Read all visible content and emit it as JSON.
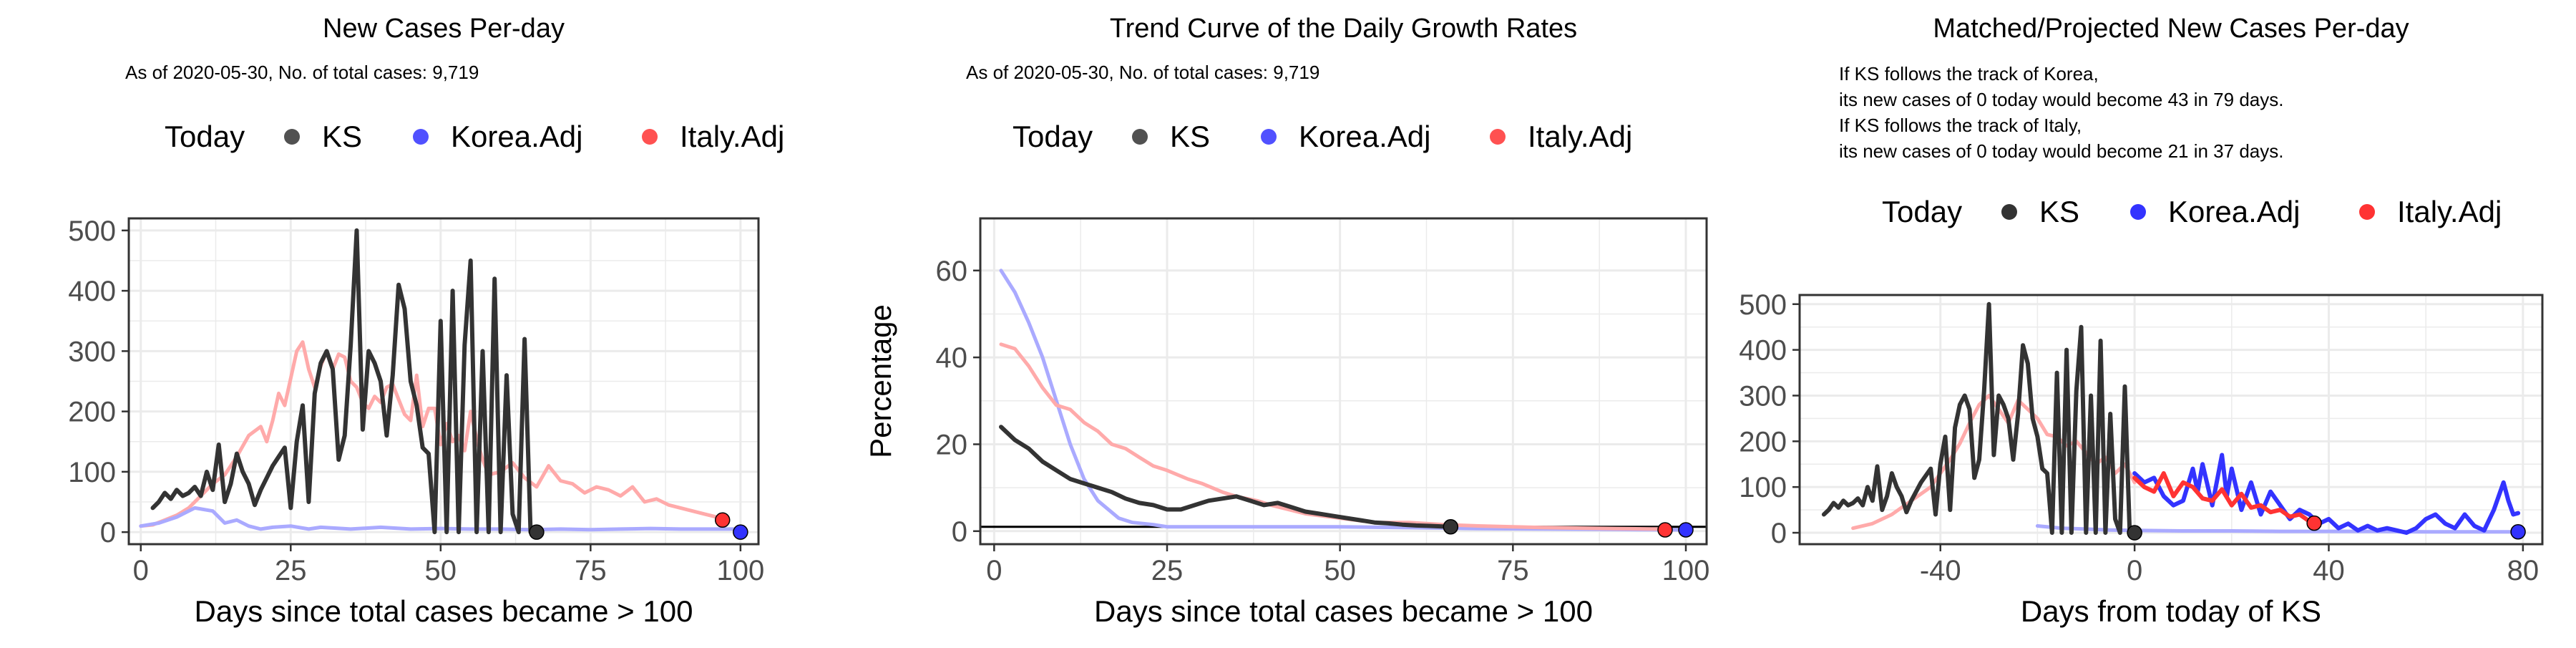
{
  "colors": {
    "ks": "#333333",
    "korea": "#3333ff",
    "italy": "#ff3333",
    "korea_faint": "#aaaaff",
    "italy_faint": "#ffaaaa",
    "grid": "#ebebeb",
    "axis_text": "#4d4d4d"
  },
  "legend_items": [
    "Today",
    "KS",
    "Korea.Adj",
    "Italy.Adj"
  ],
  "chart_data": [
    {
      "type": "line",
      "title": "New Cases Per-day",
      "subtitle": "As of 2020-05-30, No. of total cases: 9,719",
      "xlabel": "Days since total cases became > 100",
      "ylabel": "",
      "xlim": [
        -2,
        103
      ],
      "ylim": [
        -20,
        520
      ],
      "xticks": [
        0,
        25,
        50,
        75,
        100
      ],
      "yticks": [
        0,
        100,
        200,
        300,
        400,
        500
      ],
      "legend_position": "top",
      "series": [
        {
          "name": "Italy.Adj",
          "faint": true,
          "x": [
            0,
            2,
            4,
            6,
            8,
            10,
            12,
            14,
            16,
            18,
            20,
            21,
            22,
            23,
            24,
            25,
            26,
            27,
            28,
            29,
            30,
            31,
            32,
            33,
            34,
            35,
            36,
            37,
            38,
            39,
            40,
            41,
            42,
            43,
            44,
            45,
            46,
            47,
            48,
            49,
            50,
            51,
            52,
            53,
            54,
            55,
            56,
            57,
            58,
            60,
            62,
            64,
            66,
            68,
            70,
            72,
            74,
            76,
            78,
            80,
            82,
            84,
            86,
            88,
            90,
            92,
            94,
            96,
            97
          ],
          "y": [
            10,
            12,
            20,
            28,
            40,
            60,
            80,
            95,
            125,
            160,
            175,
            150,
            185,
            230,
            210,
            255,
            300,
            315,
            270,
            240,
            275,
            300,
            270,
            295,
            290,
            250,
            240,
            215,
            205,
            225,
            215,
            240,
            245,
            220,
            195,
            185,
            260,
            175,
            205,
            205,
            145,
            180,
            150,
            160,
            135,
            200,
            155,
            120,
            95,
            100,
            115,
            90,
            75,
            110,
            85,
            80,
            65,
            75,
            70,
            60,
            75,
            50,
            55,
            45,
            40,
            35,
            30,
            25,
            20
          ]
        },
        {
          "name": "Korea.Adj",
          "faint": true,
          "x": [
            0,
            3,
            6,
            9,
            12,
            14,
            16,
            18,
            20,
            22,
            25,
            28,
            30,
            35,
            40,
            45,
            50,
            55,
            60,
            65,
            70,
            75,
            80,
            85,
            90,
            95,
            100
          ],
          "y": [
            10,
            15,
            25,
            40,
            35,
            15,
            20,
            10,
            5,
            8,
            10,
            5,
            8,
            5,
            8,
            5,
            6,
            5,
            5,
            4,
            5,
            4,
            5,
            6,
            5,
            5,
            5
          ]
        },
        {
          "name": "KS",
          "x": [
            2,
            3,
            4,
            5,
            6,
            7,
            8,
            9,
            10,
            11,
            12,
            13,
            14,
            15,
            16,
            17,
            18,
            19,
            20,
            21,
            22,
            23,
            24,
            25,
            26,
            27,
            28,
            29,
            30,
            31,
            32,
            33,
            34,
            35,
            36,
            37,
            38,
            39,
            40,
            41,
            42,
            43,
            44,
            45,
            46,
            47,
            48,
            49,
            50,
            51,
            52,
            53,
            54,
            55,
            56,
            57,
            58,
            59,
            60,
            61,
            62,
            63,
            64,
            65,
            66
          ],
          "y": [
            40,
            50,
            65,
            55,
            70,
            60,
            65,
            75,
            60,
            100,
            70,
            145,
            50,
            80,
            130,
            100,
            80,
            45,
            70,
            90,
            110,
            125,
            140,
            40,
            150,
            210,
            50,
            230,
            280,
            300,
            270,
            120,
            160,
            310,
            500,
            170,
            300,
            280,
            250,
            160,
            260,
            410,
            370,
            250,
            210,
            140,
            130,
            0,
            350,
            0,
            400,
            0,
            310,
            450,
            0,
            300,
            0,
            420,
            0,
            260,
            30,
            0,
            320,
            0,
            0
          ]
        }
      ],
      "today_points": [
        {
          "name": "KS",
          "x": 66,
          "y": 0
        },
        {
          "name": "Korea.Adj",
          "x": 100,
          "y": 0
        },
        {
          "name": "Italy.Adj",
          "x": 97,
          "y": 20
        }
      ]
    },
    {
      "type": "line",
      "title": "Trend Curve of the Daily Growth Rates",
      "subtitle": "As of 2020-05-30, No. of total cases: 9,719",
      "xlabel": "Days since total cases became > 100",
      "ylabel": "Percentage",
      "xlim": [
        -2,
        103
      ],
      "ylim": [
        -3,
        72
      ],
      "xticks": [
        0,
        25,
        50,
        75,
        100
      ],
      "yticks": [
        0,
        20,
        40,
        60
      ],
      "hline": 1,
      "legend_position": "top",
      "series": [
        {
          "name": "Korea.Adj",
          "faint": true,
          "x": [
            1,
            3,
            5,
            7,
            9,
            11,
            13,
            15,
            18,
            20,
            23,
            25,
            30,
            40,
            50,
            60,
            70,
            80,
            90,
            100
          ],
          "y": [
            60,
            55,
            48,
            40,
            30,
            20,
            12,
            7,
            3,
            2,
            1.5,
            1,
            1,
            1,
            1,
            0.8,
            0.6,
            0.5,
            0.4,
            0.3
          ]
        },
        {
          "name": "Italy.Adj",
          "faint": true,
          "x": [
            1,
            3,
            5,
            7,
            9,
            11,
            13,
            15,
            17,
            19,
            21,
            23,
            25,
            28,
            30,
            33,
            35,
            38,
            40,
            45,
            50,
            55,
            60,
            65,
            70,
            75,
            80,
            85,
            90,
            95,
            97
          ],
          "y": [
            43,
            42,
            38,
            33,
            29,
            28,
            25,
            23,
            20,
            19,
            17,
            15,
            14,
            12,
            11,
            9,
            8,
            7,
            6,
            4,
            3,
            2,
            2,
            1.5,
            1.2,
            1,
            0.8,
            0.7,
            0.6,
            0.5,
            0.5
          ]
        },
        {
          "name": "KS",
          "x": [
            1,
            3,
            5,
            7,
            9,
            11,
            13,
            15,
            17,
            19,
            21,
            23,
            25,
            27,
            29,
            31,
            33,
            35,
            37,
            39,
            41,
            43,
            45,
            47,
            49,
            51,
            53,
            55,
            57,
            59,
            61,
            63,
            66
          ],
          "y": [
            24,
            21,
            19,
            16,
            14,
            12,
            11,
            10,
            9,
            7.5,
            6.5,
            6,
            5,
            5,
            6,
            7,
            7.5,
            8,
            7,
            6,
            6.5,
            5.5,
            4.5,
            4,
            3.5,
            3,
            2.5,
            2,
            1.8,
            1.5,
            1.3,
            1.2,
            1
          ]
        }
      ],
      "today_points": [
        {
          "name": "KS",
          "x": 66,
          "y": 1
        },
        {
          "name": "Korea.Adj",
          "x": 100,
          "y": 0.3
        },
        {
          "name": "Italy.Adj",
          "x": 97,
          "y": 0.3
        }
      ]
    },
    {
      "type": "line",
      "title": "Matched/Projected New Cases Per-day",
      "notes": [
        "If KS follows the track of Korea,",
        "its new cases of 0 today would become 43 in 79 days.",
        "If KS follows the track of Italy,",
        "its new cases of 0 today would become 21 in 37 days."
      ],
      "xlabel": "Days from today of KS",
      "ylabel": "",
      "xlim": [
        -69,
        84
      ],
      "ylim": [
        -25,
        520
      ],
      "xticks": [
        -40,
        0,
        40,
        80
      ],
      "yticks": [
        0,
        100,
        200,
        300,
        400,
        500
      ],
      "legend_position": "top",
      "series": [
        {
          "name": "Italy.Adj",
          "faint": true,
          "x": [
            -58,
            -54,
            -50,
            -46,
            -42,
            -40,
            -38,
            -36,
            -34,
            -32,
            -30,
            -28,
            -26,
            -24,
            -22,
            -20,
            -18,
            -16,
            -14,
            -12,
            -10,
            -8,
            -6,
            -4,
            -2,
            0
          ],
          "y": [
            10,
            20,
            40,
            70,
            100,
            130,
            160,
            195,
            240,
            280,
            300,
            270,
            240,
            290,
            270,
            250,
            215,
            210,
            190,
            200,
            175,
            150,
            165,
            130,
            150,
            110
          ]
        },
        {
          "name": "Korea.Adj",
          "faint": true,
          "x": [
            -20,
            -15,
            -10,
            -5,
            0,
            10,
            20,
            30,
            40,
            50,
            60,
            70,
            79
          ],
          "y": [
            15,
            10,
            8,
            6,
            5,
            4,
            4,
            3,
            3,
            3,
            2,
            2,
            2
          ]
        },
        {
          "name": "KS",
          "x": [
            -64,
            -63,
            -62,
            -61,
            -60,
            -59,
            -58,
            -57,
            -56,
            -55,
            -54,
            -53,
            -52,
            -51,
            -50,
            -49,
            -48,
            -47,
            -46,
            -45,
            -44,
            -43,
            -42,
            -41,
            -40,
            -39,
            -38,
            -37,
            -36,
            -35,
            -34,
            -33,
            -32,
            -31,
            -30,
            -29,
            -28,
            -27,
            -26,
            -25,
            -24,
            -23,
            -22,
            -21,
            -20,
            -19,
            -18,
            -17,
            -16,
            -15,
            -14,
            -13,
            -12,
            -11,
            -10,
            -9,
            -8,
            -7,
            -6,
            -5,
            -4,
            -3,
            -2,
            -1,
            0
          ],
          "y": [
            40,
            50,
            65,
            55,
            70,
            60,
            65,
            75,
            60,
            100,
            70,
            145,
            50,
            80,
            130,
            100,
            80,
            45,
            70,
            90,
            110,
            125,
            140,
            40,
            150,
            210,
            50,
            230,
            280,
            300,
            270,
            120,
            160,
            310,
            500,
            170,
            300,
            280,
            250,
            160,
            260,
            410,
            370,
            250,
            210,
            140,
            130,
            0,
            350,
            0,
            400,
            0,
            310,
            450,
            0,
            300,
            0,
            420,
            0,
            260,
            30,
            0,
            320,
            0,
            0
          ]
        },
        {
          "name": "Korea.Adj",
          "x": [
            0,
            2,
            4,
            6,
            8,
            10,
            12,
            13,
            14,
            16,
            18,
            19,
            20,
            22,
            24,
            26,
            28,
            30,
            32,
            34,
            36,
            38,
            40,
            42,
            44,
            46,
            48,
            50,
            52,
            54,
            56,
            58,
            60,
            62,
            64,
            66,
            68,
            70,
            72,
            74,
            76,
            77,
            78,
            79
          ],
          "y": [
            130,
            110,
            120,
            80,
            60,
            70,
            140,
            90,
            150,
            60,
            170,
            80,
            140,
            50,
            110,
            40,
            90,
            60,
            30,
            50,
            40,
            20,
            30,
            10,
            20,
            5,
            15,
            5,
            10,
            5,
            0,
            10,
            30,
            40,
            20,
            10,
            40,
            15,
            5,
            50,
            110,
            70,
            40,
            43
          ]
        },
        {
          "name": "Italy.Adj",
          "x": [
            0,
            2,
            4,
            6,
            8,
            10,
            12,
            14,
            16,
            18,
            20,
            22,
            24,
            26,
            28,
            30,
            32,
            34,
            36,
            37
          ],
          "y": [
            120,
            100,
            90,
            130,
            80,
            110,
            100,
            75,
            70,
            95,
            60,
            85,
            55,
            60,
            45,
            50,
            35,
            40,
            25,
            21
          ]
        }
      ],
      "today_points": [
        {
          "name": "KS",
          "x": 0,
          "y": 0
        },
        {
          "name": "Korea.Adj",
          "x": 79,
          "y": 2
        },
        {
          "name": "Italy.Adj",
          "x": 37,
          "y": 21
        }
      ]
    }
  ]
}
